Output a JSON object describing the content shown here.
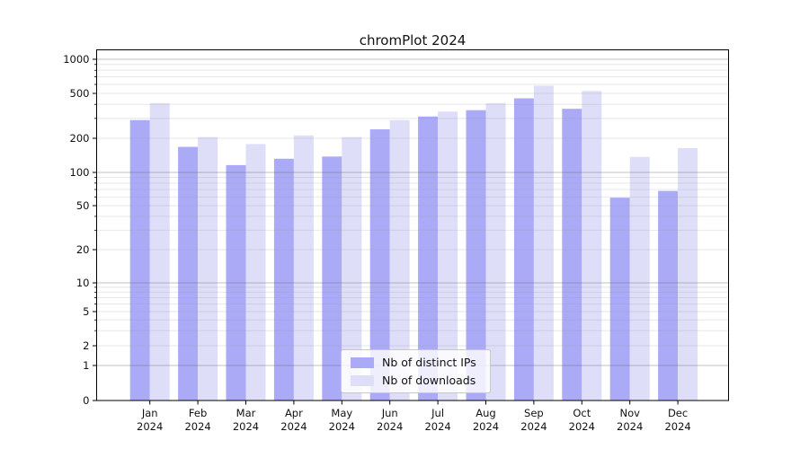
{
  "chart_data": {
    "type": "bar",
    "title": "chromPlot 2024",
    "year": "2024",
    "categories": [
      "Jan",
      "Feb",
      "Mar",
      "Apr",
      "May",
      "Jun",
      "Jul",
      "Aug",
      "Sep",
      "Oct",
      "Nov",
      "Dec"
    ],
    "series": [
      {
        "name": "Nb of distinct IPs",
        "color": "#aaaaf6",
        "values": [
          290,
          168,
          116,
          132,
          138,
          240,
          312,
          355,
          452,
          365,
          59,
          68
        ]
      },
      {
        "name": "Nb of downloads",
        "color": "#dedef8",
        "values": [
          410,
          205,
          178,
          212,
          205,
          290,
          345,
          410,
          585,
          525,
          137,
          164
        ]
      }
    ],
    "yticks": [
      1000,
      500,
      200,
      100,
      50,
      20,
      10,
      5,
      2,
      1,
      0
    ],
    "yscale": "log-with-zero",
    "ylim": [
      0,
      1200
    ],
    "grid": true,
    "legend_position": "lower-center",
    "colors": {
      "major_gridline": "#b7b7b7",
      "minor_gridline": "#e3e3e3",
      "axis": "#000000",
      "text": "#111111"
    }
  }
}
